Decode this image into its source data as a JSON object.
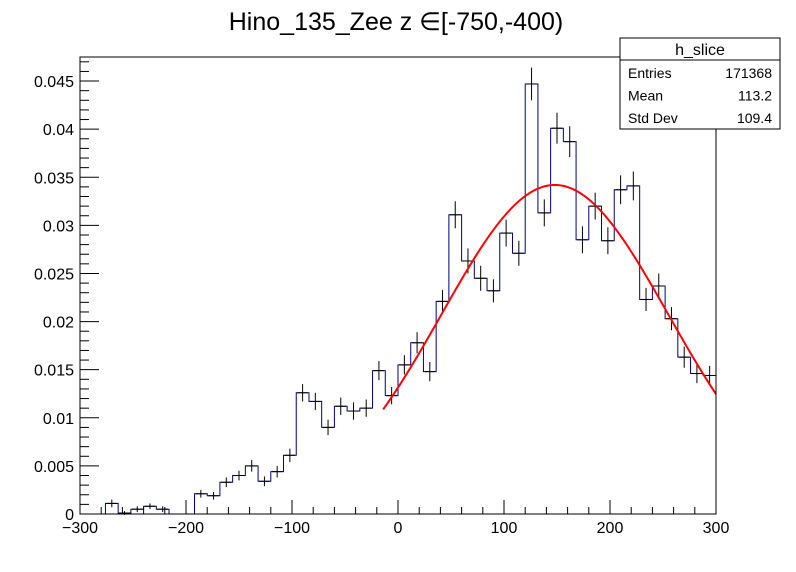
{
  "chart_data": {
    "type": "histogram",
    "title": "Hino_135_Zee z  ∈[-750,-400)",
    "xlim": [
      -300,
      300
    ],
    "ylim": [
      0,
      0.0475
    ],
    "x_ticks": [
      -300,
      -200,
      -100,
      0,
      100,
      200,
      300
    ],
    "x_tick_labels": [
      "−300",
      "−200",
      "−100",
      "0",
      "100",
      "200",
      "300"
    ],
    "y_ticks": [
      0,
      0.005,
      0.01,
      0.015,
      0.02,
      0.025,
      0.03,
      0.035,
      0.04,
      0.045
    ],
    "y_tick_labels": [
      "0",
      "0.005",
      "0.01",
      "0.015",
      "0.02",
      "0.025",
      "0.03",
      "0.035",
      "0.04",
      "0.045"
    ],
    "grid": false,
    "bin_width": 12,
    "bin_low_edges": [
      -300,
      -288,
      -276,
      -264,
      -252,
      -240,
      -228,
      -216,
      -204,
      -192,
      -180,
      -168,
      -156,
      -144,
      -132,
      -120,
      -108,
      -96,
      -84,
      -72,
      -60,
      -48,
      -36,
      -24,
      -12,
      0,
      12,
      24,
      36,
      48,
      60,
      72,
      84,
      96,
      108,
      120,
      132,
      144,
      156,
      168,
      180,
      192,
      204,
      216,
      228,
      240,
      252,
      264,
      276,
      288
    ],
    "values": [
      0,
      0,
      0.0011,
      0.0001,
      0.0005,
      0.0008,
      0.0005,
      0,
      0,
      0.0021,
      0.0019,
      0.0033,
      0.004,
      0.005,
      0.0034,
      0.0044,
      0.0061,
      0.0126,
      0.0117,
      0.009,
      0.0112,
      0.0107,
      0.011,
      0.0149,
      0.0123,
      0.0155,
      0.0178,
      0.0148,
      0.0221,
      0.0311,
      0.0263,
      0.0245,
      0.0232,
      0.0292,
      0.0271,
      0.0447,
      0.0313,
      0.0401,
      0.0387,
      0.0285,
      0.032,
      0.0284,
      0.0337,
      0.0341,
      0.0223,
      0.0237,
      0.0203,
      0.0163,
      0.0146,
      0.0144
    ],
    "errors": [
      0,
      0,
      0.0004,
      0.0002,
      0.0003,
      0.0003,
      0.0003,
      0,
      0,
      0.0004,
      0.0004,
      0.0005,
      0.0005,
      0.0006,
      0.0005,
      0.0006,
      0.0007,
      0.0009,
      0.0009,
      0.0008,
      0.0009,
      0.0009,
      0.0009,
      0.001,
      0.0009,
      0.001,
      0.0011,
      0.001,
      0.0012,
      0.0014,
      0.0013,
      0.0013,
      0.0012,
      0.0014,
      0.0013,
      0.0017,
      0.0014,
      0.0016,
      0.0016,
      0.0014,
      0.0014,
      0.0014,
      0.0015,
      0.0015,
      0.0012,
      0.0013,
      0.0012,
      0.0011,
      0.001,
      0.001
    ],
    "fit": {
      "type": "gaussian",
      "amplitude": 0.0342,
      "mean": 148,
      "sigma": 107,
      "x_range": [
        -14,
        300
      ]
    },
    "hist_color": "#000080",
    "fit_color": "#ff0000",
    "stats_box": {
      "name": "h_slice",
      "rows": [
        {
          "label": "Entries",
          "value": "171368"
        },
        {
          "label": "Mean",
          "value": "113.2"
        },
        {
          "label": "Std Dev",
          "value": "109.4"
        }
      ]
    }
  }
}
